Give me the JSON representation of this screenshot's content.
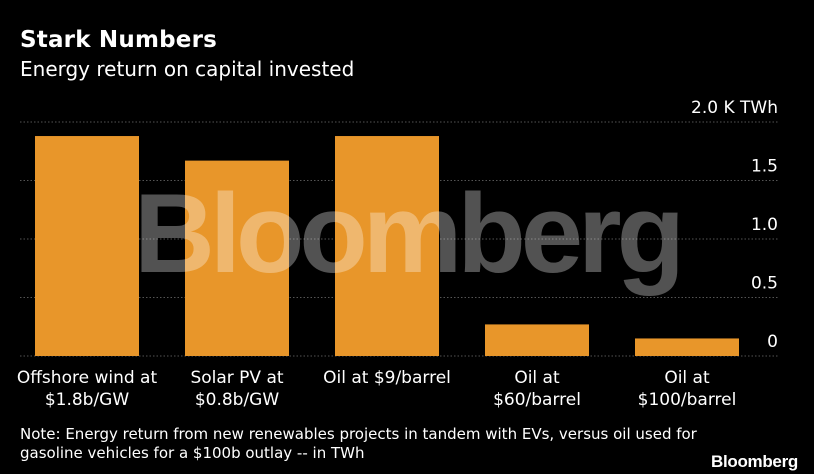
{
  "header": {
    "title": "Stark Numbers",
    "subtitle": "Energy return on capital invested"
  },
  "chart_data": {
    "type": "bar",
    "categories": [
      [
        "Offshore wind at",
        "$1.8b/GW"
      ],
      [
        "Solar PV at",
        "$0.8b/GW"
      ],
      [
        "Oil at $9/barrel"
      ],
      [
        "Oil at",
        "$60/barrel"
      ],
      [
        "Oil at",
        "$100/barrel"
      ]
    ],
    "values": [
      1.88,
      1.67,
      1.88,
      0.27,
      0.15
    ],
    "unit": "K TWh",
    "ylim": [
      0,
      2.0
    ],
    "yticks": [
      0,
      0.5,
      1.0,
      1.5,
      2.0
    ],
    "ytick_labels": [
      "0",
      "0.5",
      "1.0",
      "1.5",
      "2.0 K TWh"
    ],
    "grid": true,
    "bar_color": "#e8962a",
    "grid_color": "#555555",
    "watermark": "Bloomberg"
  },
  "note": "Note: Energy return from new renewables projects in tandem with EVs, versus oil used for gasoline vehicles for a $100b outlay -- in TWh",
  "brand": "Bloomberg"
}
